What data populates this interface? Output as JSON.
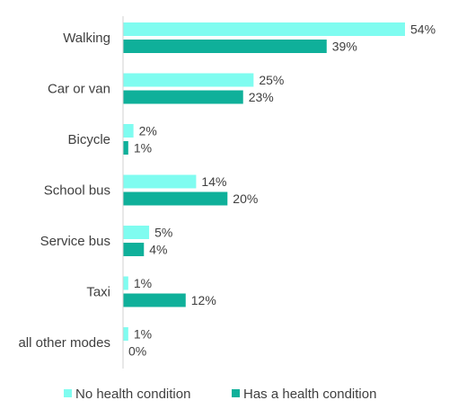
{
  "chart_data": {
    "type": "bar",
    "orientation": "horizontal",
    "categories": [
      "Walking",
      "Car or van",
      "Bicycle",
      "School bus",
      "Service bus",
      "Taxi",
      "all other modes"
    ],
    "series": [
      {
        "name": "No health condition",
        "color": "#7ffcf0",
        "values": [
          54,
          25,
          2,
          14,
          5,
          1,
          1
        ],
        "labels": [
          "54%",
          "25%",
          "2%",
          "14%",
          "5%",
          "1%",
          "1%"
        ]
      },
      {
        "name": "Has a health condition",
        "color": "#0fb09a",
        "values": [
          39,
          23,
          1,
          20,
          4,
          12,
          0
        ],
        "labels": [
          "39%",
          "23%",
          "1%",
          "20%",
          "4%",
          "12%",
          "0%"
        ]
      }
    ],
    "xlim": [
      0,
      54
    ],
    "grid": false,
    "legend_position": "bottom"
  }
}
